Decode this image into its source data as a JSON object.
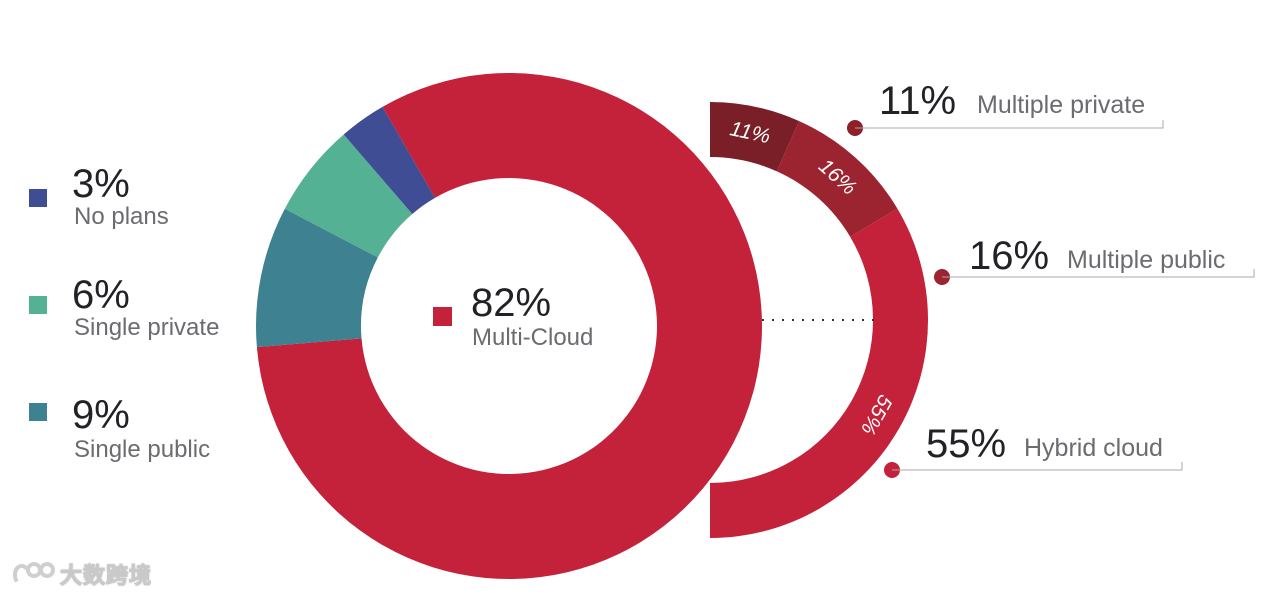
{
  "chart_data": {
    "type": "donut",
    "title": "",
    "main_ring": [
      {
        "label": "Multi-Cloud",
        "value": 82,
        "value_label": "82%",
        "color": "#c4213a"
      },
      {
        "label": "Single public",
        "value": 9,
        "value_label": "9%",
        "color": "#3e8190"
      },
      {
        "label": "Single private",
        "value": 6,
        "value_label": "6%",
        "color": "#55b194"
      },
      {
        "label": "No plans",
        "value": 3,
        "value_label": "3%",
        "color": "#3f4d94"
      }
    ],
    "breakdown_of": "Multi-Cloud",
    "breakdown_ring": [
      {
        "label": "Multiple private",
        "value": 11,
        "value_label": "11%",
        "color": "#7a1f27"
      },
      {
        "label": "Multiple public",
        "value": 16,
        "value_label": "16%",
        "color": "#9b2430"
      },
      {
        "label": "Hybrid cloud",
        "value": 55,
        "value_label": "55%",
        "color": "#c4213a"
      }
    ],
    "legend_position": "left"
  },
  "watermark": {
    "text": "大数跨境",
    "icon": "watermark-logo-icon"
  }
}
